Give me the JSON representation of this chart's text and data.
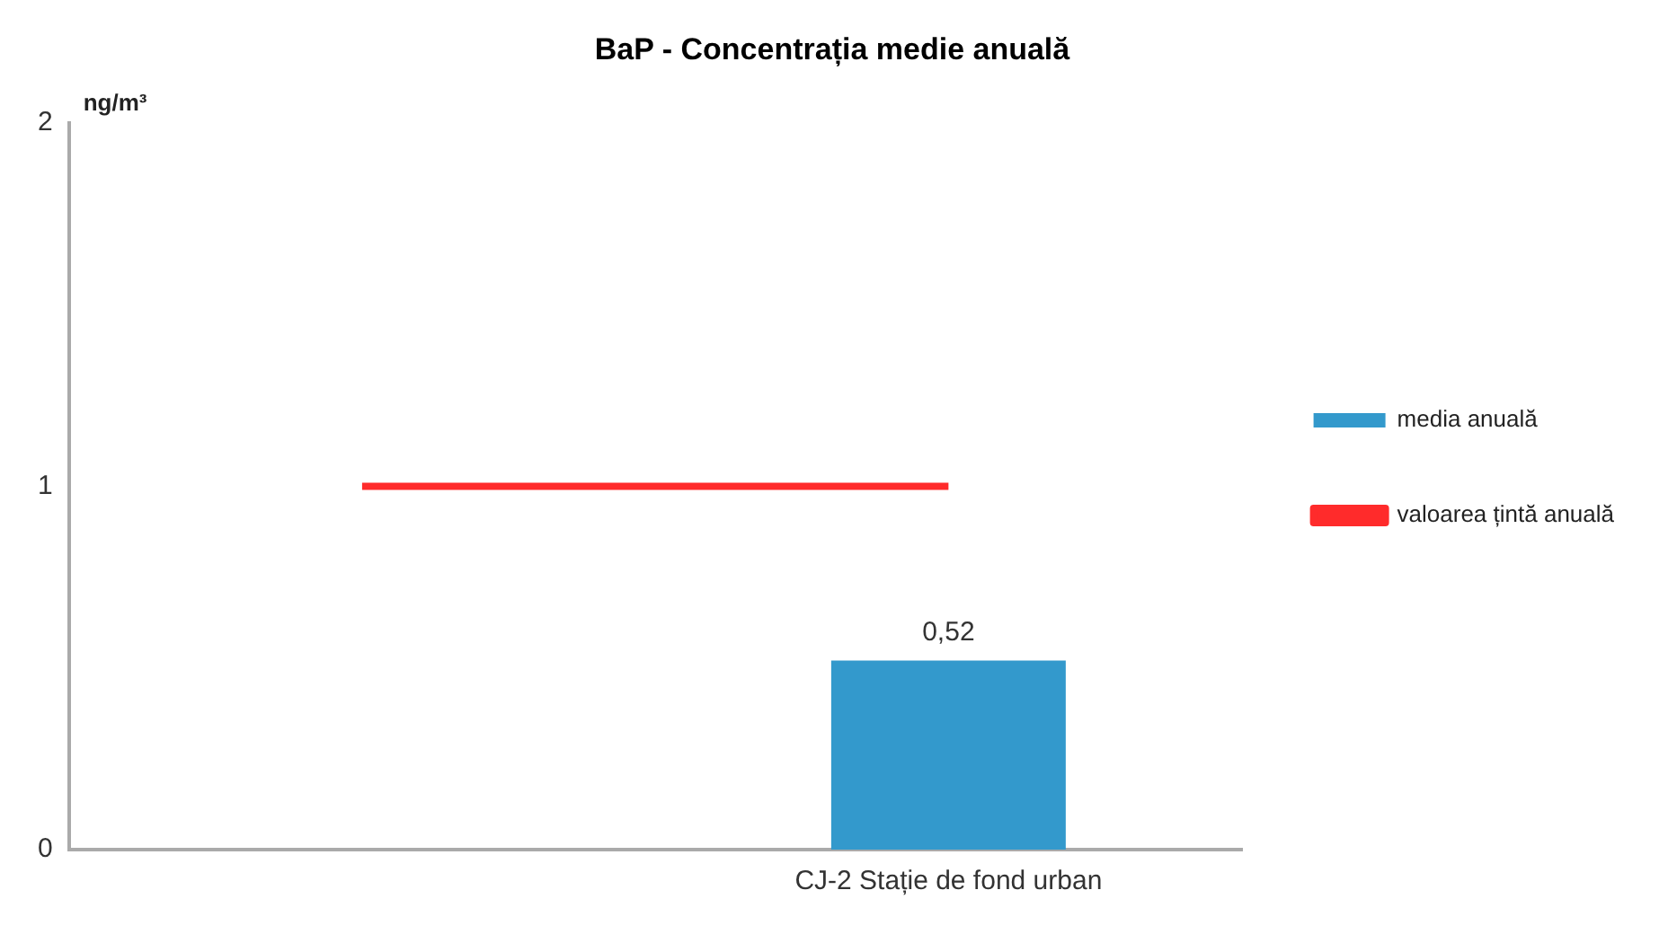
{
  "chart_data": {
    "type": "bar",
    "title": "BaP - Concentrația medie anuală",
    "ylabel": "ng/m³",
    "categories": [
      null,
      "CJ-2 Stație de fond urban"
    ],
    "series": [
      {
        "name": "media anuală",
        "color": "#3399cc",
        "values": [
          null,
          0.52
        ],
        "value_labels": [
          null,
          "0,52"
        ]
      },
      {
        "name": "valoarea țintă anuală",
        "type": "line",
        "color": "#ff2b2b",
        "values": [
          1,
          1
        ]
      }
    ],
    "ylim": [
      0,
      2
    ],
    "yticks": [
      0,
      1,
      2
    ],
    "grid": false,
    "legend": "right",
    "marker": "none",
    "line_style": "solid"
  }
}
